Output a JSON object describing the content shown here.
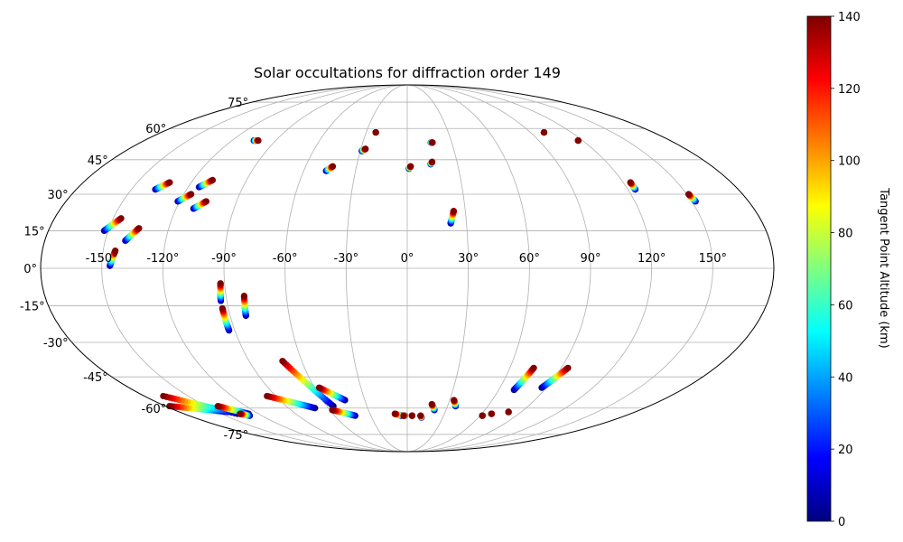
{
  "chart_data": {
    "type": "scatter",
    "projection": "mollweide",
    "title": "Solar occultations for diffraction order 149",
    "xlabel": "",
    "ylabel": "",
    "lon_ticks": [
      "-150°",
      "-120°",
      "-90°",
      "-60°",
      "-30°",
      "0°",
      "30°",
      "60°",
      "90°",
      "120°",
      "150°"
    ],
    "lon_tick_values": [
      -150,
      -120,
      -90,
      -60,
      -30,
      0,
      30,
      60,
      90,
      120,
      150
    ],
    "lat_ticks": [
      "75°",
      "60°",
      "45°",
      "30°",
      "15°",
      "0°",
      "-15°",
      "-30°",
      "-45°",
      "-60°",
      "-75°"
    ],
    "lat_tick_values": [
      75,
      60,
      45,
      30,
      15,
      0,
      -15,
      -30,
      -45,
      -60,
      -75
    ],
    "grid": true,
    "colorbar": {
      "label": "Tangent Point Altitude (km)",
      "colormap": "jet",
      "range": [
        0,
        140
      ],
      "ticks": [
        "0",
        "20",
        "40",
        "60",
        "80",
        "100",
        "120",
        "140"
      ]
    },
    "tracks": [
      {
        "start": [
          -137,
          32
        ],
        "end": [
          -132,
          35
        ]
      },
      {
        "start": [
          -152,
          15
        ],
        "end": [
          -146,
          20
        ]
      },
      {
        "start": [
          -146,
          1
        ],
        "end": [
          -144,
          7
        ]
      },
      {
        "start": [
          -140,
          11
        ],
        "end": [
          -135,
          16
        ]
      },
      {
        "start": [
          -121,
          27
        ],
        "end": [
          -116,
          30
        ]
      },
      {
        "start": [
          -114,
          33
        ],
        "end": [
          -109,
          36
        ]
      },
      {
        "start": [
          -111,
          24
        ],
        "end": [
          -106,
          27
        ]
      },
      {
        "start": [
          -105,
          54
        ],
        "end": [
          -102,
          54
        ]
      },
      {
        "start": [
          -93,
          -25
        ],
        "end": [
          -93,
          -16
        ]
      },
      {
        "start": [
          -93,
          -13
        ],
        "end": [
          -92,
          -6
        ]
      },
      {
        "start": [
          -82,
          -19
        ],
        "end": [
          -81,
          -11
        ]
      },
      {
        "start": [
          -47,
          40
        ],
        "end": [
          -44,
          42
        ]
      },
      {
        "start": [
          -29,
          49
        ],
        "end": [
          -27,
          50
        ]
      },
      {
        "start": [
          -23,
          58
        ],
        "end": [
          -23,
          58
        ]
      },
      {
        "start": [
          1,
          41
        ],
        "end": [
          2,
          42
        ]
      },
      {
        "start": [
          14,
          43
        ],
        "end": [
          15,
          44
        ]
      },
      {
        "start": [
          16,
          53
        ],
        "end": [
          17,
          53
        ]
      },
      {
        "start": [
          22,
          18
        ],
        "end": [
          24,
          23
        ]
      },
      {
        "start": [
          100,
          58
        ],
        "end": [
          100,
          58
        ]
      },
      {
        "start": [
          117,
          54
        ],
        "end": [
          117,
          54
        ]
      },
      {
        "start": [
          124,
          32
        ],
        "end": [
          124,
          35
        ]
      },
      {
        "start": [
          152,
          27
        ],
        "end": [
          151,
          30
        ]
      },
      {
        "start": [
          -142,
          -62
        ],
        "end": [
          -177,
          -59
        ]
      },
      {
        "start": [
          -137,
          -63
        ],
        "end": [
          -167,
          -54
        ]
      },
      {
        "start": [
          -128,
          -63
        ],
        "end": [
          -141,
          -59
        ]
      },
      {
        "start": [
          -130,
          -64
        ],
        "end": [
          -135,
          -63
        ]
      },
      {
        "start": [
          -70,
          -60
        ],
        "end": [
          -96,
          -54
        ]
      },
      {
        "start": [
          -55,
          -59
        ],
        "end": [
          -71,
          -38
        ]
      },
      {
        "start": [
          -44,
          -56
        ],
        "end": [
          -57,
          -50
        ]
      },
      {
        "start": [
          -43,
          -64
        ],
        "end": [
          -58,
          -61
        ]
      },
      {
        "start": [
          -5,
          -64
        ],
        "end": [
          -10,
          -63
        ]
      },
      {
        "start": [
          -2,
          -64
        ],
        "end": [
          -3,
          -64
        ]
      },
      {
        "start": [
          4,
          -64
        ],
        "end": [
          4,
          -64
        ]
      },
      {
        "start": [
          12,
          -65
        ],
        "end": [
          11,
          -64
        ]
      },
      {
        "start": [
          21,
          -61
        ],
        "end": [
          18,
          -58
        ]
      },
      {
        "start": [
          36,
          -59
        ],
        "end": [
          33,
          -56
        ]
      },
      {
        "start": [
          68,
          -63
        ],
        "end": [
          68,
          -63
        ]
      },
      {
        "start": [
          62,
          -64
        ],
        "end": [
          62,
          -64
        ]
      },
      {
        "start": [
          80,
          -62
        ],
        "end": [
          80,
          -62
        ]
      },
      {
        "start": [
          70,
          -51
        ],
        "end": [
          74,
          -41
        ]
      },
      {
        "start": [
          87,
          -50
        ],
        "end": [
          94,
          -41
        ]
      }
    ]
  }
}
